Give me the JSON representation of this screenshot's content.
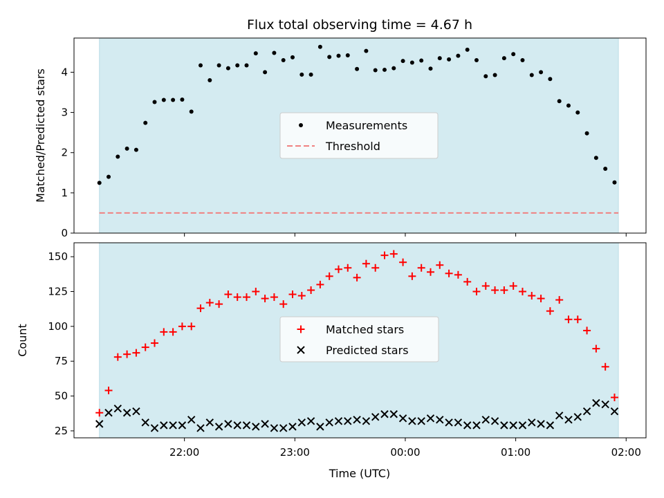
{
  "chart_data": {
    "title": "Flux total observing time = 4.67 h",
    "xlabel": "Time (UTC)",
    "x_ticks": [
      "22:00",
      "23:00",
      "00:00",
      "01:00",
      "02:00"
    ],
    "x_tick_hours": [
      22,
      23,
      24,
      25,
      26
    ],
    "x_range_hours": [
      21.0,
      26.18
    ],
    "shaded_range_hours": [
      21.23,
      25.93
    ],
    "shade_color": "#d4ebf1",
    "panels": [
      {
        "type": "scatter",
        "ylabel": "Matched/Predicted stars",
        "ylim": [
          0,
          4.85
        ],
        "y_ticks": [
          0,
          1,
          2,
          3,
          4
        ],
        "legend": [
          "Measurements",
          "Threshold"
        ],
        "legend_position": "center",
        "threshold": 0.5,
        "threshold_color": "#f08080",
        "series": [
          {
            "name": "Measurements",
            "marker": "dot",
            "color": "#000000",
            "start_hour": 21.23,
            "step_hours": 0.0833,
            "values": [
              1.25,
              1.4,
              1.9,
              2.1,
              2.07,
              2.74,
              3.26,
              3.31,
              3.31,
              3.32,
              3.02,
              4.17,
              3.8,
              4.17,
              4.1,
              4.17,
              4.17,
              4.47,
              4.0,
              4.48,
              4.3,
              4.37,
              3.94,
              3.94,
              4.63,
              4.38,
              4.41,
              4.42,
              4.08,
              4.53,
              4.05,
              4.06,
              4.1,
              4.28,
              4.24,
              4.29,
              4.09,
              4.35,
              4.32,
              4.41,
              4.56,
              4.3,
              3.9,
              3.93,
              4.35,
              4.45,
              4.3,
              3.93,
              4.0,
              3.83,
              3.28,
              3.17,
              3.0,
              2.48,
              1.87,
              1.6,
              1.26
            ]
          }
        ]
      },
      {
        "type": "scatter",
        "ylabel": "Count",
        "ylim": [
          20,
          160
        ],
        "y_ticks": [
          25,
          50,
          75,
          100,
          125,
          150
        ],
        "legend": [
          "Matched stars",
          "Predicted stars"
        ],
        "legend_position": "center",
        "series": [
          {
            "name": "Matched stars",
            "marker": "plus",
            "color": "#ff0000",
            "start_hour": 21.23,
            "step_hours": 0.0833,
            "values": [
              38,
              54,
              78,
              80,
              81,
              85,
              88,
              96,
              96,
              100,
              100,
              113,
              117,
              116,
              123,
              121,
              121,
              125,
              120,
              121,
              116,
              123,
              122,
              126,
              130,
              136,
              141,
              142,
              135,
              145,
              142,
              151,
              152,
              146,
              136,
              142,
              139,
              144,
              138,
              137,
              132,
              125,
              129,
              126,
              126,
              129,
              125,
              122,
              120,
              111,
              119,
              105,
              105,
              97,
              84,
              71,
              49
            ]
          },
          {
            "name": "Predicted stars",
            "marker": "x",
            "color": "#000000",
            "start_hour": 21.23,
            "step_hours": 0.0833,
            "values": [
              30,
              38,
              41,
              38,
              39,
              31,
              27,
              29,
              29,
              29,
              33,
              27,
              31,
              28,
              30,
              29,
              29,
              28,
              30,
              27,
              27,
              28,
              31,
              32,
              28,
              31,
              32,
              32,
              33,
              32,
              35,
              37,
              37,
              34,
              32,
              32,
              34,
              33,
              31,
              31,
              29,
              29,
              33,
              32,
              29,
              29,
              29,
              31,
              30,
              29,
              36,
              33,
              35,
              39,
              45,
              44,
              39
            ]
          }
        ]
      }
    ]
  }
}
